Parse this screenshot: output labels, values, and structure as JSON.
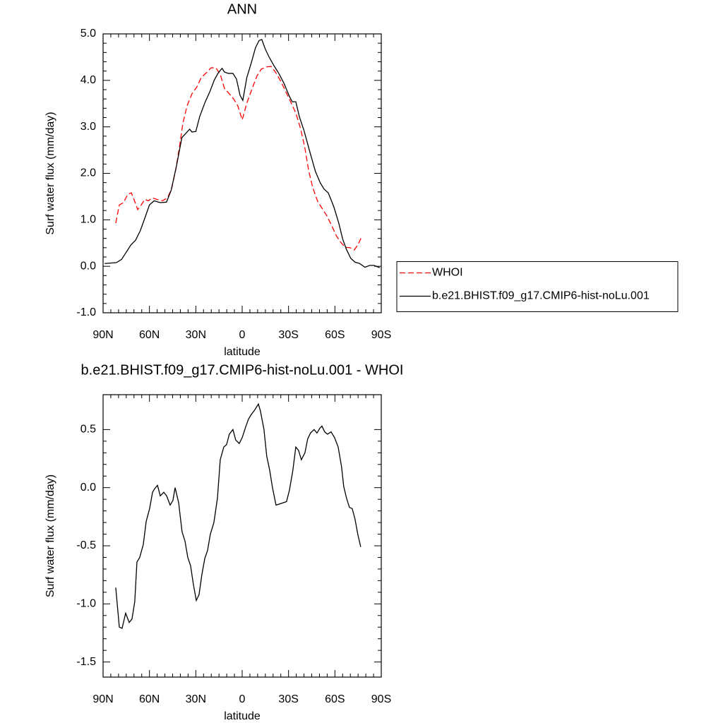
{
  "chart_data": [
    {
      "type": "line",
      "title": "ANN",
      "xlabel": "latitude",
      "ylabel": "Surf water flux (mm/day)",
      "xlim": [
        90,
        -90
      ],
      "ylim": [
        -1.0,
        5.0
      ],
      "xticks": [
        {
          "value": 90,
          "label": "90N"
        },
        {
          "value": 60,
          "label": "60N"
        },
        {
          "value": 30,
          "label": "30N"
        },
        0,
        {
          "value": -30,
          "label": "30S"
        },
        {
          "value": -60,
          "label": "60S"
        },
        {
          "value": -90,
          "label": "90S"
        }
      ],
      "yticks": [
        {
          "value": -1.0,
          "label": "-1.0"
        },
        {
          "value": 0.0,
          "label": "0.0"
        },
        {
          "value": 1.0,
          "label": "1.0"
        },
        {
          "value": 2.0,
          "label": "2.0"
        },
        {
          "value": 3.0,
          "label": "3.0"
        },
        {
          "value": 4.0,
          "label": "4.0"
        },
        {
          "value": 5.0,
          "label": "5.0"
        }
      ],
      "legend": "right",
      "series": [
        {
          "name": "WHOI",
          "color": "#ff0000",
          "line_style": "dashed",
          "x": [
            81.8,
            79.5,
            76.8,
            74,
            71.7,
            70,
            67.6,
            65.3,
            63,
            60.8,
            58,
            55.3,
            51.6,
            48.4,
            45.7,
            43,
            40.7,
            38.4,
            35.7,
            32.5,
            29.3,
            26.5,
            23.3,
            20.1,
            17,
            14.2,
            11.5,
            8.3,
            5.5,
            2.8,
            0,
            -3,
            -6.3,
            -9.5,
            -12.3,
            -15.5,
            -18.7,
            -21.9,
            -25,
            -28.3,
            -31.5,
            -34.7,
            -37.9,
            -40.6,
            -42.9,
            -45.6,
            -48.8,
            -52,
            -54.7,
            -58,
            -60.7,
            -63.4,
            -66.6,
            -69.8,
            -72.5,
            -74.8,
            -77
          ],
          "values": [
            0.93,
            1.32,
            1.37,
            1.55,
            1.58,
            1.44,
            1.22,
            1.32,
            1.44,
            1.41,
            1.47,
            1.44,
            1.41,
            1.47,
            1.66,
            2.08,
            2.54,
            3.07,
            3.45,
            3.71,
            3.86,
            4.06,
            4.16,
            4.27,
            4.27,
            4.13,
            3.83,
            3.71,
            3.6,
            3.45,
            3.15,
            3.51,
            3.81,
            4.09,
            4.24,
            4.29,
            4.3,
            4.16,
            3.98,
            3.75,
            3.53,
            3.3,
            2.95,
            2.54,
            2.08,
            1.7,
            1.4,
            1.23,
            1.09,
            0.87,
            0.67,
            0.53,
            0.41,
            0.4,
            0.35,
            0.46,
            0.61
          ]
        },
        {
          "name": "b.e21.BHIST.f09_g17.CMIP6-hist-noLu.001",
          "color": "#000000",
          "line_style": "solid",
          "x": [
            89,
            81.3,
            78,
            72,
            69,
            66,
            63.5,
            60,
            57,
            53,
            49,
            46,
            42.5,
            39,
            37,
            34,
            32.5,
            30,
            27.5,
            24,
            21,
            18,
            15.5,
            13,
            11.5,
            9,
            6,
            3.7,
            1.4,
            -0.4,
            -3,
            -6,
            -8.6,
            -11,
            -12.7,
            -15,
            -17.3,
            -20.5,
            -23.7,
            -27,
            -30.5,
            -32.4,
            -34.7,
            -37,
            -40,
            -43.8,
            -47.4,
            -50.6,
            -53,
            -55.7,
            -59.3,
            -62.5,
            -65,
            -67.5,
            -70.3,
            -73,
            -76,
            -79.4,
            -82.6,
            -85.3,
            -89
          ],
          "values": [
            0.06,
            0.08,
            0.15,
            0.46,
            0.56,
            0.76,
            0.99,
            1.32,
            1.41,
            1.37,
            1.38,
            1.63,
            2.16,
            2.77,
            2.84,
            2.95,
            2.89,
            2.9,
            3.22,
            3.53,
            3.75,
            4.01,
            4.16,
            4.26,
            4.18,
            4.15,
            4.15,
            4.03,
            3.68,
            3.57,
            4.06,
            4.39,
            4.7,
            4.86,
            4.88,
            4.67,
            4.51,
            4.32,
            4.15,
            3.94,
            3.66,
            3.54,
            3.54,
            3.22,
            2.92,
            2.46,
            2.04,
            1.79,
            1.66,
            1.58,
            1.28,
            0.93,
            0.59,
            0.36,
            0.17,
            0.09,
            0.06,
            -0.02,
            0.02,
            0.02,
            -0.03
          ]
        }
      ]
    },
    {
      "type": "line",
      "title": "b.e21.BHIST.f09_g17.CMIP6-hist-noLu.001 - WHOI",
      "xlabel": "latitude",
      "ylabel": "Surf water flux (mm/day)",
      "xlim": [
        90,
        -90
      ],
      "ylim": [
        -1.63,
        0.8
      ],
      "xticks": [
        {
          "value": 90,
          "label": "90N"
        },
        {
          "value": 60,
          "label": "60N"
        },
        {
          "value": 30,
          "label": "30N"
        },
        0,
        {
          "value": -30,
          "label": "30S"
        },
        {
          "value": -60,
          "label": "60S"
        },
        {
          "value": -90,
          "label": "90S"
        }
      ],
      "yticks": [
        -1.5,
        {
          "value": -1.0,
          "label": "-1.0"
        },
        -0.5,
        {
          "value": 0.0,
          "label": "0.0"
        },
        0.5
      ],
      "series": [
        {
          "color": "#000000",
          "line_style": "solid",
          "x": [
            81.8,
            79.5,
            77.7,
            75.4,
            73.1,
            71.3,
            69.5,
            68.1,
            66.3,
            64,
            62.1,
            59.9,
            58,
            56.7,
            54.8,
            53,
            50.7,
            48.9,
            46.6,
            44.8,
            43.4,
            41.1,
            38.9,
            37,
            35.2,
            33.4,
            31.6,
            29.7,
            27.9,
            26.1,
            24.2,
            22.4,
            20.6,
            18.3,
            16,
            14.2,
            11.9,
            10.1,
            8.3,
            6,
            4.2,
            1.9,
            0,
            -2.2,
            -4.1,
            -5.9,
            -8.2,
            -10.5,
            -11.8,
            -14.1,
            -15.9,
            -17.8,
            -19.6,
            -21.9,
            -24.2,
            -26.4,
            -28.7,
            -30.6,
            -32.8,
            -34.7,
            -36.5,
            -38.3,
            -40.6,
            -42.4,
            -44.2,
            -46.5,
            -48.4,
            -50.2,
            -51.6,
            -53.4,
            -55.2,
            -57.5,
            -59.8,
            -62.1,
            -64.3,
            -65.7,
            -67.5,
            -69.4,
            -71.2,
            -73,
            -74.8,
            -76.7
          ],
          "values": [
            -0.86,
            -1.2,
            -1.21,
            -1.08,
            -1.16,
            -1.13,
            -0.98,
            -0.64,
            -0.6,
            -0.49,
            -0.29,
            -0.18,
            -0.04,
            -0.01,
            0.02,
            -0.07,
            -0.04,
            -0.07,
            -0.15,
            -0.11,
            0.0,
            -0.13,
            -0.38,
            -0.46,
            -0.6,
            -0.67,
            -0.83,
            -0.97,
            -0.92,
            -0.75,
            -0.61,
            -0.54,
            -0.4,
            -0.3,
            -0.09,
            0.24,
            0.35,
            0.37,
            0.46,
            0.5,
            0.41,
            0.38,
            0.43,
            0.52,
            0.59,
            0.63,
            0.67,
            0.72,
            0.66,
            0.5,
            0.27,
            0.15,
            0.0,
            -0.15,
            -0.14,
            -0.13,
            -0.12,
            -0.02,
            0.15,
            0.35,
            0.32,
            0.24,
            0.3,
            0.42,
            0.47,
            0.5,
            0.47,
            0.51,
            0.53,
            0.48,
            0.46,
            0.48,
            0.43,
            0.35,
            0.18,
            0.01,
            -0.09,
            -0.17,
            -0.18,
            -0.27,
            -0.4,
            -0.51
          ]
        }
      ]
    }
  ]
}
